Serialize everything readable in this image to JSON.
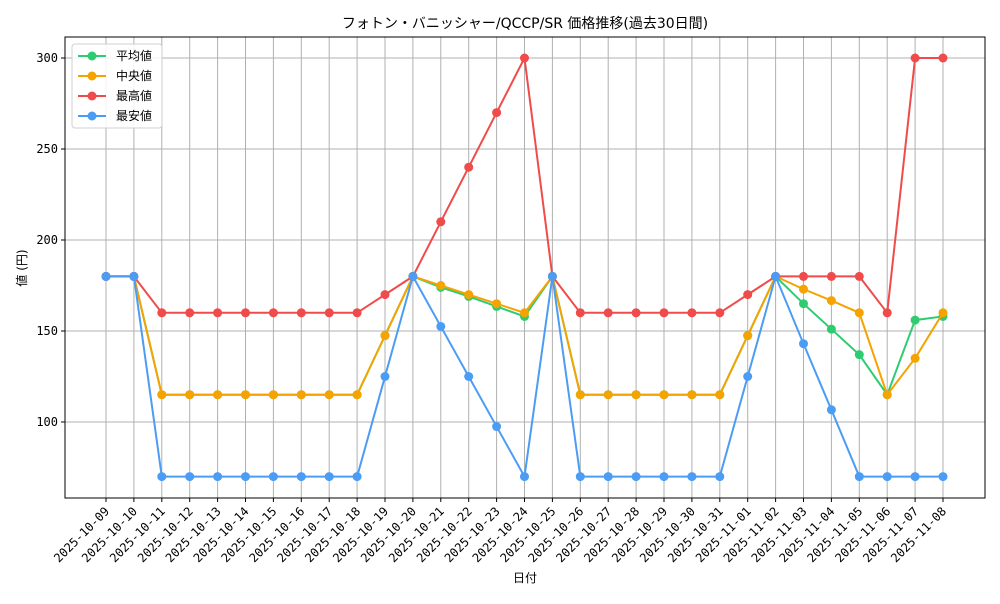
{
  "chart_data": {
    "type": "line",
    "title": "フォトン・バニッシャー/QCCP/SR 価格推移(過去30日間)",
    "xlabel": "日付",
    "ylabel": "値 (円)",
    "ylim": [
      58,
      311.5
    ],
    "yticks": [
      100,
      150,
      200,
      250,
      300
    ],
    "grid": true,
    "legend_position": "upper left",
    "x": [
      "2025-10-09",
      "2025-10-10",
      "2025-10-11",
      "2025-10-12",
      "2025-10-13",
      "2025-10-14",
      "2025-10-15",
      "2025-10-16",
      "2025-10-17",
      "2025-10-18",
      "2025-10-19",
      "2025-10-20",
      "2025-10-21",
      "2025-10-22",
      "2025-10-23",
      "2025-10-24",
      "2025-10-25",
      "2025-10-26",
      "2025-10-27",
      "2025-10-28",
      "2025-10-29",
      "2025-10-30",
      "2025-10-31",
      "2025-11-01",
      "2025-11-02",
      "2025-11-03",
      "2025-11-04",
      "2025-11-05",
      "2025-11-06",
      "2025-11-07",
      "2025-11-08"
    ],
    "series": [
      {
        "name": "平均値",
        "color": "#2ecc71",
        "values": [
          180,
          180,
          115,
          115,
          115,
          115,
          115,
          115,
          115,
          115,
          147.5,
          180,
          174,
          169,
          163.5,
          158,
          180,
          115,
          115,
          115,
          115,
          115,
          115,
          147.5,
          180,
          165,
          151,
          137,
          115,
          156,
          158
        ]
      },
      {
        "name": "中央値",
        "color": "#f5a300",
        "values": [
          180,
          180,
          115,
          115,
          115,
          115,
          115,
          115,
          115,
          115,
          147.5,
          180,
          175,
          170,
          165,
          160,
          180,
          115,
          115,
          115,
          115,
          115,
          115,
          147.5,
          180,
          173,
          166.7,
          160,
          115,
          135,
          160
        ]
      },
      {
        "name": "最高値",
        "color": "#f04b4b",
        "values": [
          180,
          180,
          160,
          160,
          160,
          160,
          160,
          160,
          160,
          160,
          170,
          180,
          210,
          240,
          270,
          300,
          180,
          160,
          160,
          160,
          160,
          160,
          160,
          170,
          180,
          180,
          180,
          180,
          160,
          300,
          300
        ]
      },
      {
        "name": "最安値",
        "color": "#4b9cf5",
        "values": [
          180,
          180,
          70,
          70,
          70,
          70,
          70,
          70,
          70,
          70,
          125,
          180,
          152.5,
          125,
          97.5,
          70,
          180,
          70,
          70,
          70,
          70,
          70,
          70,
          125,
          180,
          143,
          106.7,
          70,
          70,
          70,
          70
        ]
      }
    ]
  }
}
